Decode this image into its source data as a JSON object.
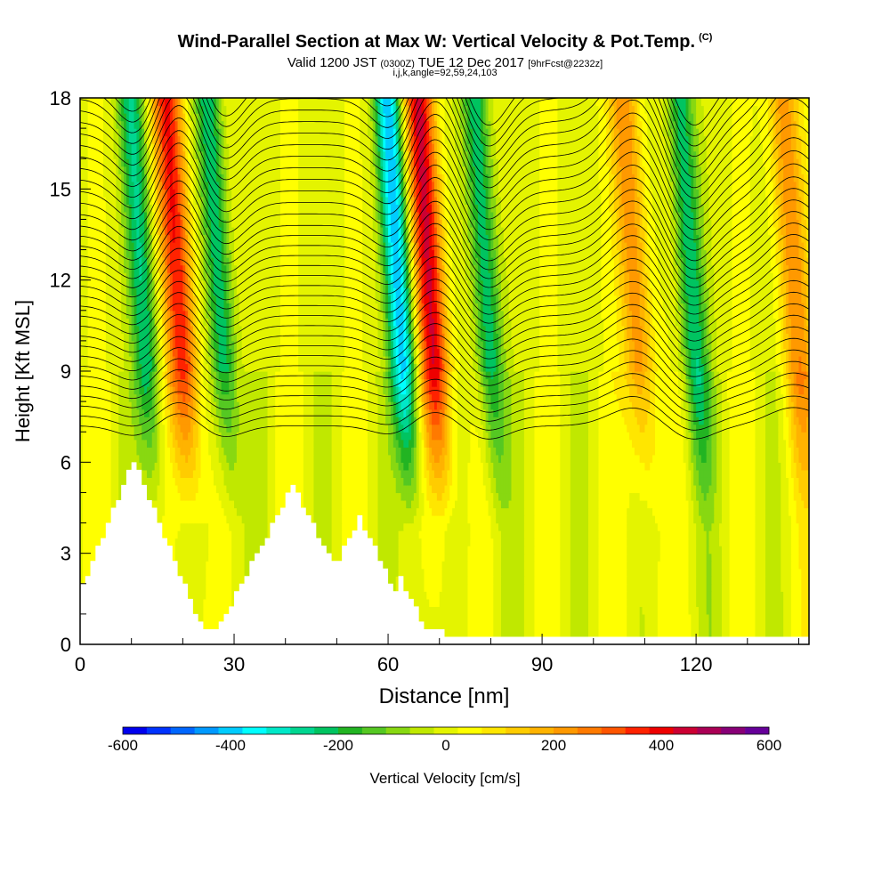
{
  "header": {
    "title": "Wind-Parallel Section at Max W: Vertical Velocity & Pot.Temp.",
    "copyright_mark": "(C)",
    "subtitle_main": "Valid 1200 JST",
    "subtitle_utc": "(0300Z)",
    "subtitle_date": "TUE 12 Dec 2017",
    "subtitle_run": "[9hrFcst@2232z]",
    "subsubtitle": "i,j,k,angle=92,59,24,103"
  },
  "chart_data": {
    "type": "heatmap",
    "xlabel": "Distance [nm]",
    "ylabel": "Height [Kft MSL]",
    "xlim": [
      0,
      142
    ],
    "ylim": [
      0,
      18
    ],
    "x_ticks": [
      0,
      30,
      60,
      90,
      120
    ],
    "y_ticks": [
      0,
      3,
      6,
      9,
      12,
      15,
      18
    ],
    "field": "Vertical Velocity (filled) with Potential Temperature contours",
    "updraft_bands_center_x_nm": [
      19,
      68,
      108,
      139
    ],
    "downdraft_bands_center_x_nm": [
      12,
      27,
      62,
      79,
      119
    ],
    "terrain_peaks": [
      {
        "x": 10,
        "height": 6.1
      },
      {
        "x": 41,
        "height": 5.2
      },
      {
        "x": 54,
        "height": 4.2
      },
      {
        "x": 62,
        "height": 2.2
      }
    ],
    "colorbar": {
      "label": "Vertical Velocity [cm/s]",
      "tick_labels": [
        "-600",
        "-400",
        "-200",
        "0",
        "200",
        "400",
        "600"
      ],
      "colors": [
        "#0000ee",
        "#0033ff",
        "#0066ff",
        "#0099ff",
        "#00ccff",
        "#00ffff",
        "#00e8c8",
        "#00d690",
        "#00c460",
        "#22b422",
        "#55c822",
        "#88d811",
        "#c0e800",
        "#e4f400",
        "#ffff00",
        "#ffe600",
        "#ffcc00",
        "#ffb300",
        "#ff9900",
        "#ff7a00",
        "#ff5500",
        "#ff2200",
        "#ee0000",
        "#cc0033",
        "#aa0055",
        "#880077",
        "#660099"
      ]
    }
  }
}
